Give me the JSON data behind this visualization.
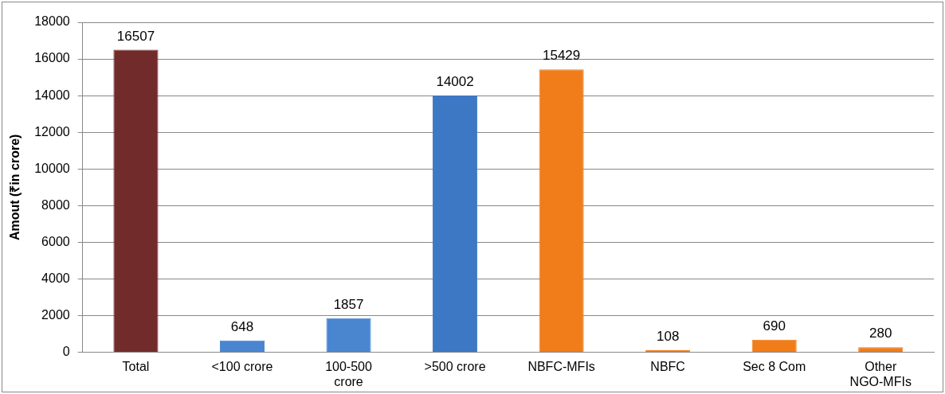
{
  "chart_data": {
    "type": "bar",
    "ylabel": "Amout (₹in crore)",
    "categories": [
      "Total",
      "<100 crore",
      "100-500 crore",
      ">500 crore",
      "NBFC-MFIs",
      "NBFC",
      "Sec 8 Com",
      "Other NGO-MFIs"
    ],
    "values": [
      16507,
      648,
      1857,
      14002,
      15429,
      108,
      690,
      280
    ],
    "colors": [
      "#722b2b",
      "#4a86d0",
      "#4a86d0",
      "#3c78c4",
      "#f07d1a",
      "#f07d1a",
      "#f07d1a",
      "#f07d1a"
    ],
    "ylim": [
      0,
      18000
    ],
    "yticks": [
      0,
      2000,
      4000,
      6000,
      8000,
      10000,
      12000,
      14000,
      16000,
      18000
    ],
    "grid": "y",
    "data_labels": true,
    "legend": false
  }
}
